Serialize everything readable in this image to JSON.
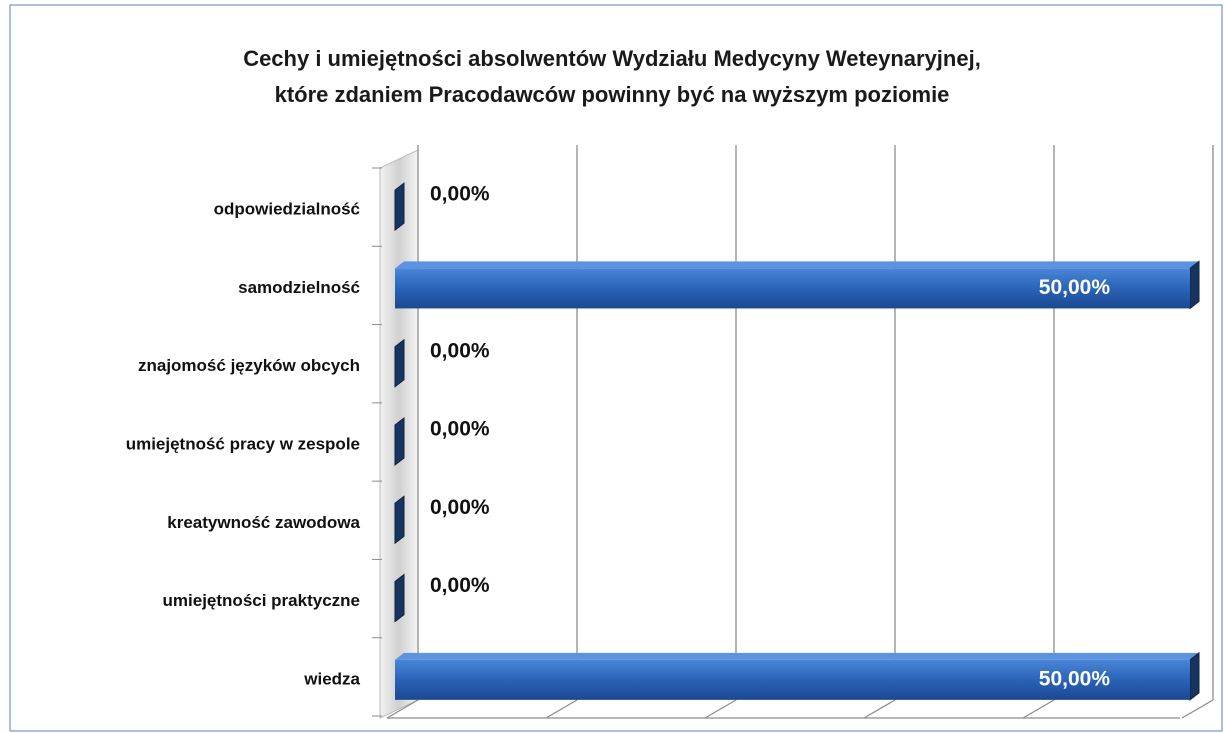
{
  "chart_data": {
    "type": "bar",
    "orientation": "horizontal",
    "title": "Cechy i umiejętności absolwentów Wydziału Medycyny Weteynaryjnej,",
    "subtitle": "które zdaniem Pracodawców powinny być na wyższym poziomie",
    "categories": [
      "odpowiedzialność",
      "samodzielność",
      "znajomość języków obcych",
      "umiejętność pracy w zespole",
      "kreatywność zawodowa",
      "umiejętności praktyczne",
      "wiedza"
    ],
    "values": [
      0,
      50,
      0,
      0,
      0,
      0,
      50
    ],
    "value_labels": [
      "0,00%",
      "50,00%",
      "0,00%",
      "0,00%",
      "0,00%",
      "0,00%",
      "50,00%"
    ],
    "color": "#2a63b8",
    "xlim": [
      0,
      50
    ],
    "xticks": [
      0,
      10,
      20,
      30,
      40,
      50
    ],
    "grid": true
  }
}
